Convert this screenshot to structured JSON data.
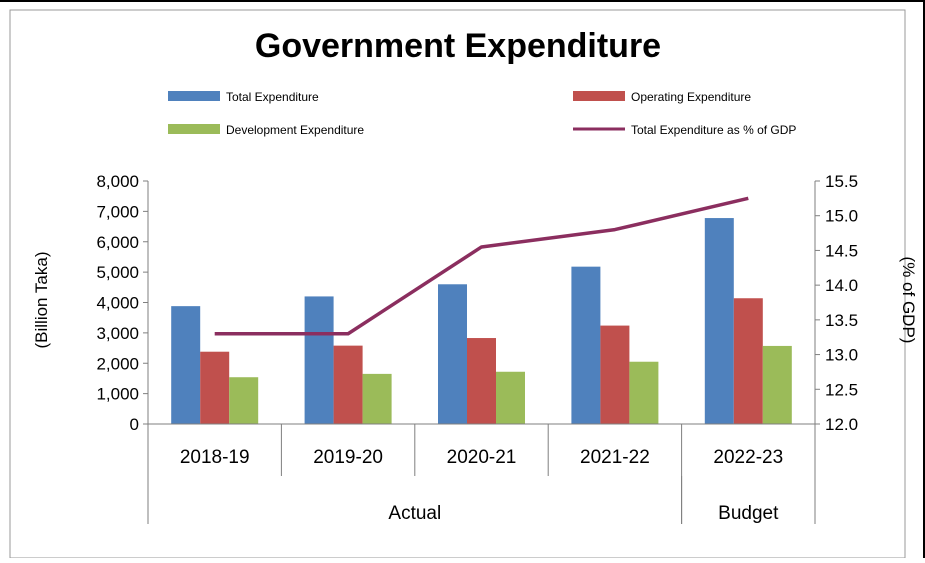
{
  "chart_data": {
    "type": "bar",
    "title": "Government Expenditure",
    "categories": [
      "2018-19",
      "2019-20",
      "2020-21",
      "2021-22",
      "2022-23"
    ],
    "groups": [
      {
        "label": "Actual",
        "span": 4
      },
      {
        "label": "Budget",
        "span": 1
      }
    ],
    "ylabel": "(Billion Taka)",
    "y2label": "(% of GDP)",
    "ylim": [
      0,
      8000
    ],
    "y2lim": [
      12.0,
      15.5
    ],
    "yticks": [
      "0",
      "1,000",
      "2,000",
      "3,000",
      "4,000",
      "5,000",
      "6,000",
      "7,000",
      "8,000"
    ],
    "y2ticks": [
      "12.0",
      "12.5",
      "13.0",
      "13.5",
      "14.0",
      "14.5",
      "15.0",
      "15.5"
    ],
    "grid": false,
    "legend_position": "top",
    "series": [
      {
        "name": "Total Expenditure",
        "type": "bar",
        "color": "#4f81bd",
        "values": [
          3880,
          4200,
          4600,
          5180,
          6780
        ]
      },
      {
        "name": "Operating Expenditure",
        "type": "bar",
        "color": "#c0504d",
        "values": [
          2380,
          2580,
          2830,
          3240,
          4140
        ]
      },
      {
        "name": "Development Expenditure",
        "type": "bar",
        "color": "#9bbb59",
        "values": [
          1540,
          1650,
          1720,
          2050,
          2570
        ]
      },
      {
        "name": "Total Expenditure as % of GDP",
        "type": "line",
        "axis": "right",
        "color": "#8b2e5f",
        "values": [
          13.3,
          13.3,
          14.55,
          14.8,
          15.25
        ]
      }
    ]
  }
}
